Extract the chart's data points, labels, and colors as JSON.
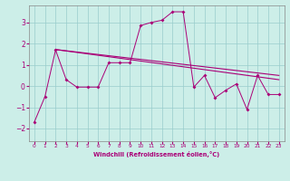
{
  "xlabel": "Windchill (Refroidissement éolien,°C)",
  "bg_color": "#cceee8",
  "line_color": "#aa0077",
  "grid_color": "#99cccc",
  "xlim": [
    -0.5,
    23.5
  ],
  "ylim": [
    -2.6,
    3.8
  ],
  "yticks": [
    -2,
    -1,
    0,
    1,
    2,
    3
  ],
  "xticks": [
    0,
    1,
    2,
    3,
    4,
    5,
    6,
    7,
    8,
    9,
    10,
    11,
    12,
    13,
    14,
    15,
    16,
    17,
    18,
    19,
    20,
    21,
    22,
    23
  ],
  "jagged_x": [
    0,
    1,
    2,
    3,
    4,
    5,
    6,
    7,
    8,
    9,
    10,
    11,
    12,
    13,
    14,
    15,
    16,
    17,
    18,
    19,
    20,
    21,
    22,
    23
  ],
  "jagged_y": [
    -1.7,
    -0.5,
    1.7,
    0.3,
    -0.05,
    -0.05,
    -0.05,
    1.1,
    1.1,
    1.1,
    2.85,
    3.0,
    3.1,
    3.5,
    3.5,
    -0.05,
    0.5,
    -0.55,
    -0.2,
    0.1,
    -1.1,
    0.5,
    -0.4,
    -0.4
  ],
  "line1_x": [
    2,
    23
  ],
  "line1_y": [
    1.72,
    0.5
  ],
  "line2_x": [
    2,
    23
  ],
  "line2_y": [
    1.72,
    0.3
  ]
}
